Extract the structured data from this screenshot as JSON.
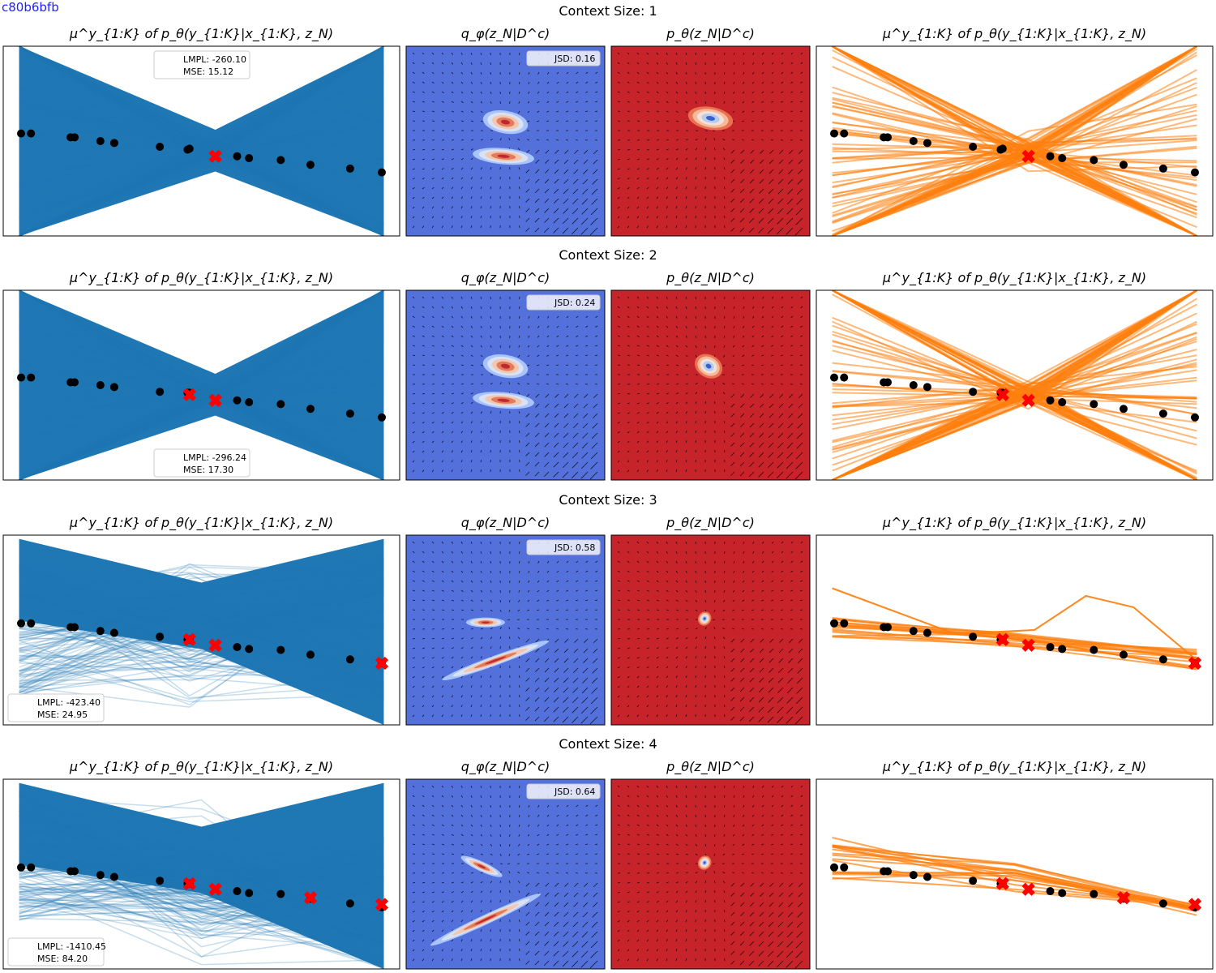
{
  "page_id": "c80b6bfb",
  "colors": {
    "blue_lines": "#1f77b4",
    "orange_lines": "#ff7f0e",
    "q_background": "#5470db",
    "p_background": "#c7232b",
    "context_marker": "#ff0000",
    "target_marker": "#000000"
  },
  "panel_titles": {
    "col1": "μ^y_{1:K} of p_θ(y_{1:K}|x_{1:K}, z_N)",
    "col2": "q_φ(z_N|D^c)",
    "col3": "p_θ(z_N|D^c)",
    "col4": "μ^y_{1:K} of p_θ(y_{1:K}|x_{1:K}, z_N)"
  },
  "chart_data": [
    {
      "type": "line",
      "row_title": "Context Size: 1",
      "lmpl_label": "LMPL: -260.10",
      "mse_label": "MSE: 15.12",
      "jsd_label": "JSD: 0.16"
    },
    {
      "type": "line",
      "row_title": "Context Size: 2",
      "lmpl_label": "LMPL: -296.24",
      "mse_label": "MSE: 17.30",
      "jsd_label": "JSD: 0.24"
    },
    {
      "type": "line",
      "row_title": "Context Size: 3",
      "lmpl_label": "LMPL: -423.40",
      "mse_label": "MSE: 24.95",
      "jsd_label": "JSD: 0.58"
    },
    {
      "type": "line",
      "row_title": "Context Size: 4",
      "lmpl_label": "LMPL: -1410.45",
      "mse_label": "MSE: 84.20",
      "jsd_label": "JSD: 0.64"
    }
  ]
}
